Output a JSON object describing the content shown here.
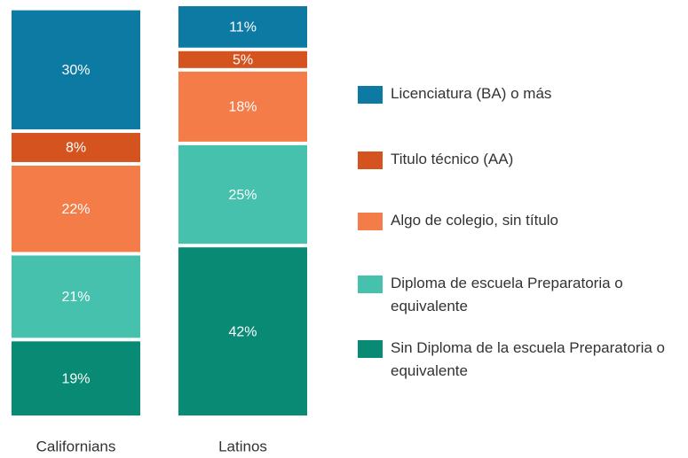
{
  "chart_data": {
    "type": "stacked_bar",
    "categories": [
      "Californians",
      "Latinos"
    ],
    "series": [
      {
        "name": "Sin Diploma de la escuela Preparatoria o equivalente",
        "color": "#088a74",
        "values": [
          19,
          42
        ]
      },
      {
        "name": "Diploma de escuela Preparatoria o equivalente",
        "color": "#45c1ae",
        "values": [
          21,
          25
        ]
      },
      {
        "name": "Algo de colegio, sin título",
        "color": "#f47c48",
        "values": [
          22,
          18
        ]
      },
      {
        "name": "Titulo técnico (AA)",
        "color": "#d4531f",
        "values": [
          8,
          5
        ]
      },
      {
        "name": "Licenciatura (BA) o más",
        "color": "#0c7aa3",
        "values": [
          30,
          11
        ]
      }
    ],
    "value_labels": [
      [
        "19%",
        "42%"
      ],
      [
        "21%",
        "25%"
      ],
      [
        "22%",
        "18%"
      ],
      [
        "8%",
        "5%"
      ],
      [
        "30%",
        "11%"
      ]
    ]
  }
}
